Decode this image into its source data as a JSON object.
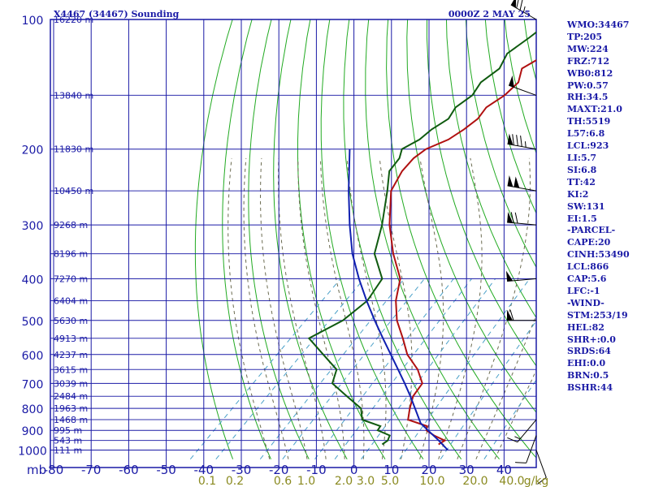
{
  "header": {
    "station": "X4467 (34467) Sounding",
    "time": "0000Z  2 MAY 25"
  },
  "indices": [
    "WMO:34467",
    "TP:205",
    "MW:224",
    "FRZ:712",
    "WB0:812",
    "PW:0.57",
    "RH:34.5",
    "MAXT:21.0",
    "TH:5519",
    "L57:6.8",
    "LCL:923",
    "LI:5.7",
    "SI:6.8",
    "TT:42",
    "KI:2",
    "SW:131",
    "EI:1.5",
    "-PARCEL-",
    "CAPE:20",
    "CINH:53490",
    "LCL:866",
    "CAP:5.6",
    "LFC:-1",
    "-WIND-",
    "STM:253/19",
    "HEL:82",
    "SHR+:0.0",
    "SRDS:64",
    "EHI:0.0",
    "BRN:0.5",
    "BSHR:44"
  ],
  "colors": {
    "frame": "#1a1aa6",
    "temperature": "#b01010",
    "dewpoint": "#0f5a0f",
    "parcel": "#1020b0",
    "dry_adiabat": "#22aa22",
    "moist_adiabat": "#6b6b50",
    "mixing_ratio": "#4aa0c8",
    "mixing_ratio_labels": "#8a8a20"
  },
  "chart_data": {
    "type": "line",
    "subtype": "skew-t log-p sounding",
    "xlabel": "",
    "ylabel": "",
    "pressure_unit_label": "mb",
    "mixing_ratio_unit_label": "g/kg",
    "pressure_levels": [
      100,
      200,
      300,
      400,
      500,
      600,
      700,
      800,
      900,
      1000
    ],
    "pressure_tick_labels": [
      "100",
      "200",
      "300",
      "400",
      "500",
      "600",
      "700",
      "800",
      "900",
      "1000"
    ],
    "temperature_ticks": [
      -80,
      -70,
      -60,
      -50,
      -40,
      -30,
      -20,
      -10,
      0,
      10,
      20,
      30,
      40
    ],
    "temperature_tick_labels": [
      "-80",
      "-70",
      "-60",
      "-50",
      "-40",
      "-30",
      "-20",
      "-10",
      "0",
      "10",
      "20",
      "30",
      "40"
    ],
    "mixing_ratio_ticks": [
      0.1,
      0.2,
      0.6,
      1.0,
      2.0,
      3.0,
      5.0,
      10.0,
      20.0,
      40.0
    ],
    "mixing_ratio_tick_labels": [
      "0.1",
      "0.2",
      "0.6",
      "1.0",
      "2.0",
      "3.0",
      "5.0",
      "10.0",
      "20.0",
      "40.0"
    ],
    "height_levels": [
      {
        "p": 100,
        "label": "16220 m"
      },
      {
        "p": 150,
        "label": "13840 m"
      },
      {
        "p": 200,
        "label": "11830 m"
      },
      {
        "p": 250,
        "label": "10450 m"
      },
      {
        "p": 300,
        "label": "9268 m"
      },
      {
        "p": 350,
        "label": "8196 m"
      },
      {
        "p": 400,
        "label": "7270 m"
      },
      {
        "p": 450,
        "label": "6404 m"
      },
      {
        "p": 500,
        "label": "5630 m"
      },
      {
        "p": 550,
        "label": "4913 m"
      },
      {
        "p": 600,
        "label": "4237 m"
      },
      {
        "p": 650,
        "label": "3615 m"
      },
      {
        "p": 700,
        "label": "3039 m"
      },
      {
        "p": 750,
        "label": "2484 m"
      },
      {
        "p": 800,
        "label": "1963 m"
      },
      {
        "p": 850,
        "label": "1468 m"
      },
      {
        "p": 900,
        "label": "995 m"
      },
      {
        "p": 950,
        "label": "543 m"
      },
      {
        "p": 1000,
        "label": "111 m"
      }
    ],
    "series": [
      {
        "name": "temperature",
        "points": [
          [
            970,
            21.0
          ],
          [
            950,
            21.6
          ],
          [
            925,
            17.4
          ],
          [
            900,
            14.0
          ],
          [
            880,
            13.0
          ],
          [
            850,
            6.2
          ],
          [
            800,
            3.6
          ],
          [
            750,
            1.2
          ],
          [
            700,
            0.2
          ],
          [
            650,
            -4.8
          ],
          [
            600,
            -11.6
          ],
          [
            550,
            -17.2
          ],
          [
            500,
            -23.6
          ],
          [
            450,
            -29.2
          ],
          [
            400,
            -34.0
          ],
          [
            350,
            -42.6
          ],
          [
            300,
            -51.4
          ],
          [
            250,
            -60.2
          ],
          [
            225,
            -62.6
          ],
          [
            210,
            -63.0
          ],
          [
            200,
            -62.2
          ],
          [
            190,
            -58.8
          ],
          [
            180,
            -57.4
          ],
          [
            170,
            -56.6
          ],
          [
            160,
            -57.4
          ],
          [
            150,
            -55.8
          ],
          [
            140,
            -55.6
          ],
          [
            130,
            -58.4
          ],
          [
            120,
            -55.6
          ],
          [
            110,
            -57.0
          ],
          [
            100,
            -57.6
          ]
        ]
      },
      {
        "name": "dewpoint",
        "points": [
          [
            970,
            6.0
          ],
          [
            950,
            6.4
          ],
          [
            925,
            5.6
          ],
          [
            900,
            1.0
          ],
          [
            880,
            0.6
          ],
          [
            850,
            -6.0
          ],
          [
            800,
            -9.4
          ],
          [
            750,
            -16.4
          ],
          [
            700,
            -23.8
          ],
          [
            650,
            -26.4
          ],
          [
            600,
            -34.0
          ],
          [
            550,
            -42.2
          ],
          [
            500,
            -38.0
          ],
          [
            450,
            -36.8
          ],
          [
            400,
            -38.8
          ],
          [
            350,
            -47.6
          ],
          [
            300,
            -53.4
          ],
          [
            250,
            -61.2
          ],
          [
            225,
            -66.0
          ],
          [
            210,
            -66.8
          ],
          [
            200,
            -68.6
          ],
          [
            190,
            -66.5
          ],
          [
            180,
            -66.0
          ],
          [
            170,
            -64.4
          ],
          [
            160,
            -65.6
          ],
          [
            150,
            -64.4
          ],
          [
            140,
            -65.6
          ],
          [
            130,
            -64.4
          ],
          [
            120,
            -66.4
          ],
          [
            110,
            -64.8
          ],
          [
            100,
            -63.4
          ]
        ]
      },
      {
        "name": "parcel",
        "points": [
          [
            1000,
            25.0
          ],
          [
            950,
            20.0
          ],
          [
            900,
            14.4
          ],
          [
            866,
            10.5
          ],
          [
            850,
            9.2
          ],
          [
            800,
            5.0
          ],
          [
            750,
            0.5
          ],
          [
            700,
            -4.5
          ],
          [
            650,
            -10.0
          ],
          [
            600,
            -16.0
          ],
          [
            550,
            -22.5
          ],
          [
            500,
            -29.5
          ],
          [
            450,
            -37.0
          ],
          [
            400,
            -45.0
          ],
          [
            350,
            -53.5
          ],
          [
            300,
            -62.0
          ],
          [
            250,
            -71.5
          ],
          [
            200,
            -82.5
          ]
        ]
      }
    ],
    "wind_barbs": [
      {
        "p": 100,
        "dir": 300,
        "spd": 75
      },
      {
        "p": 150,
        "dir": 290,
        "spd": 50
      },
      {
        "p": 200,
        "dir": 280,
        "spd": 85
      },
      {
        "p": 250,
        "dir": 280,
        "spd": 100
      },
      {
        "p": 300,
        "dir": 275,
        "spd": 70
      },
      {
        "p": 400,
        "dir": 265,
        "spd": 50
      },
      {
        "p": 500,
        "dir": 270,
        "spd": 60
      },
      {
        "p": 850,
        "dir": 220,
        "spd": 15
      },
      {
        "p": 925,
        "dir": 200,
        "spd": 10
      },
      {
        "p": 1000,
        "dir": 160,
        "spd": 10
      }
    ],
    "wind_unit": "kt"
  }
}
